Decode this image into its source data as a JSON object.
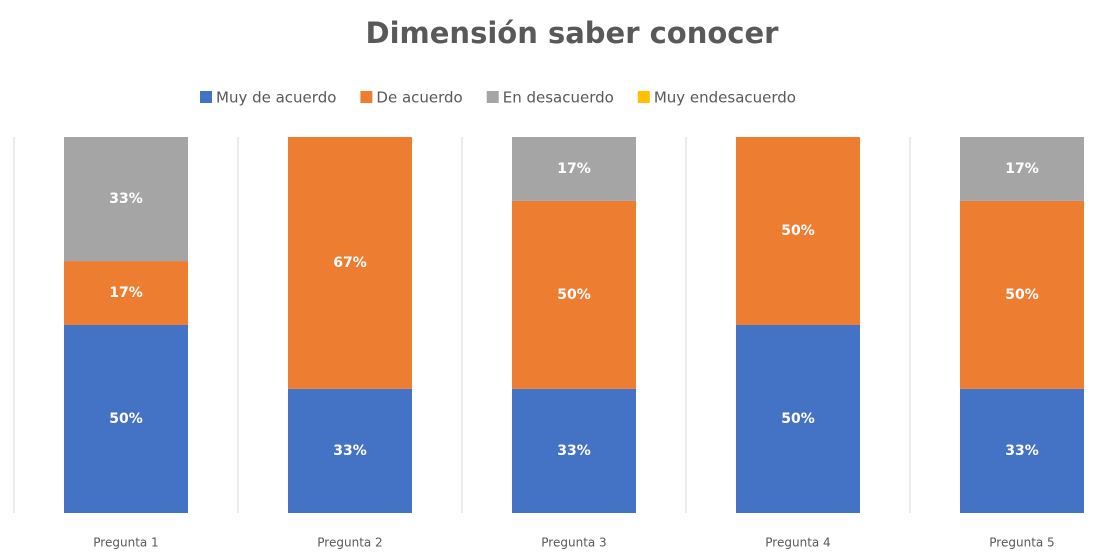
{
  "chart_data": {
    "type": "stacked_bar_100",
    "title": "Dimensión saber conocer",
    "categories": [
      "Pregunta 1",
      "Pregunta 2",
      "Pregunta 3",
      "Pregunta 4",
      "Pregunta 5"
    ],
    "series": [
      {
        "name": "Muy de acuerdo",
        "color": "#4472c4",
        "values": [
          50,
          33,
          33,
          50,
          33
        ],
        "value_labels": [
          "50%",
          "33%",
          "33%",
          "50%",
          "33%"
        ]
      },
      {
        "name": "De acuerdo",
        "color": "#ed7d31",
        "values": [
          17,
          67,
          50,
          50,
          50
        ],
        "value_labels": [
          "17%",
          "67%",
          "50%",
          "50%",
          "50%"
        ]
      },
      {
        "name": "En desacuerdo",
        "color": "#a5a5a5",
        "values": [
          33,
          0,
          17,
          0,
          17
        ],
        "value_labels": [
          "33%",
          null,
          "17%",
          null,
          "17%"
        ]
      },
      {
        "name": "Muy endesacuerdo",
        "color": "#ffc000",
        "values": [
          0,
          0,
          0,
          0,
          0
        ],
        "value_labels": [
          null,
          null,
          null,
          null,
          null
        ]
      }
    ],
    "ylim": [
      0,
      100
    ],
    "legend": "top"
  }
}
